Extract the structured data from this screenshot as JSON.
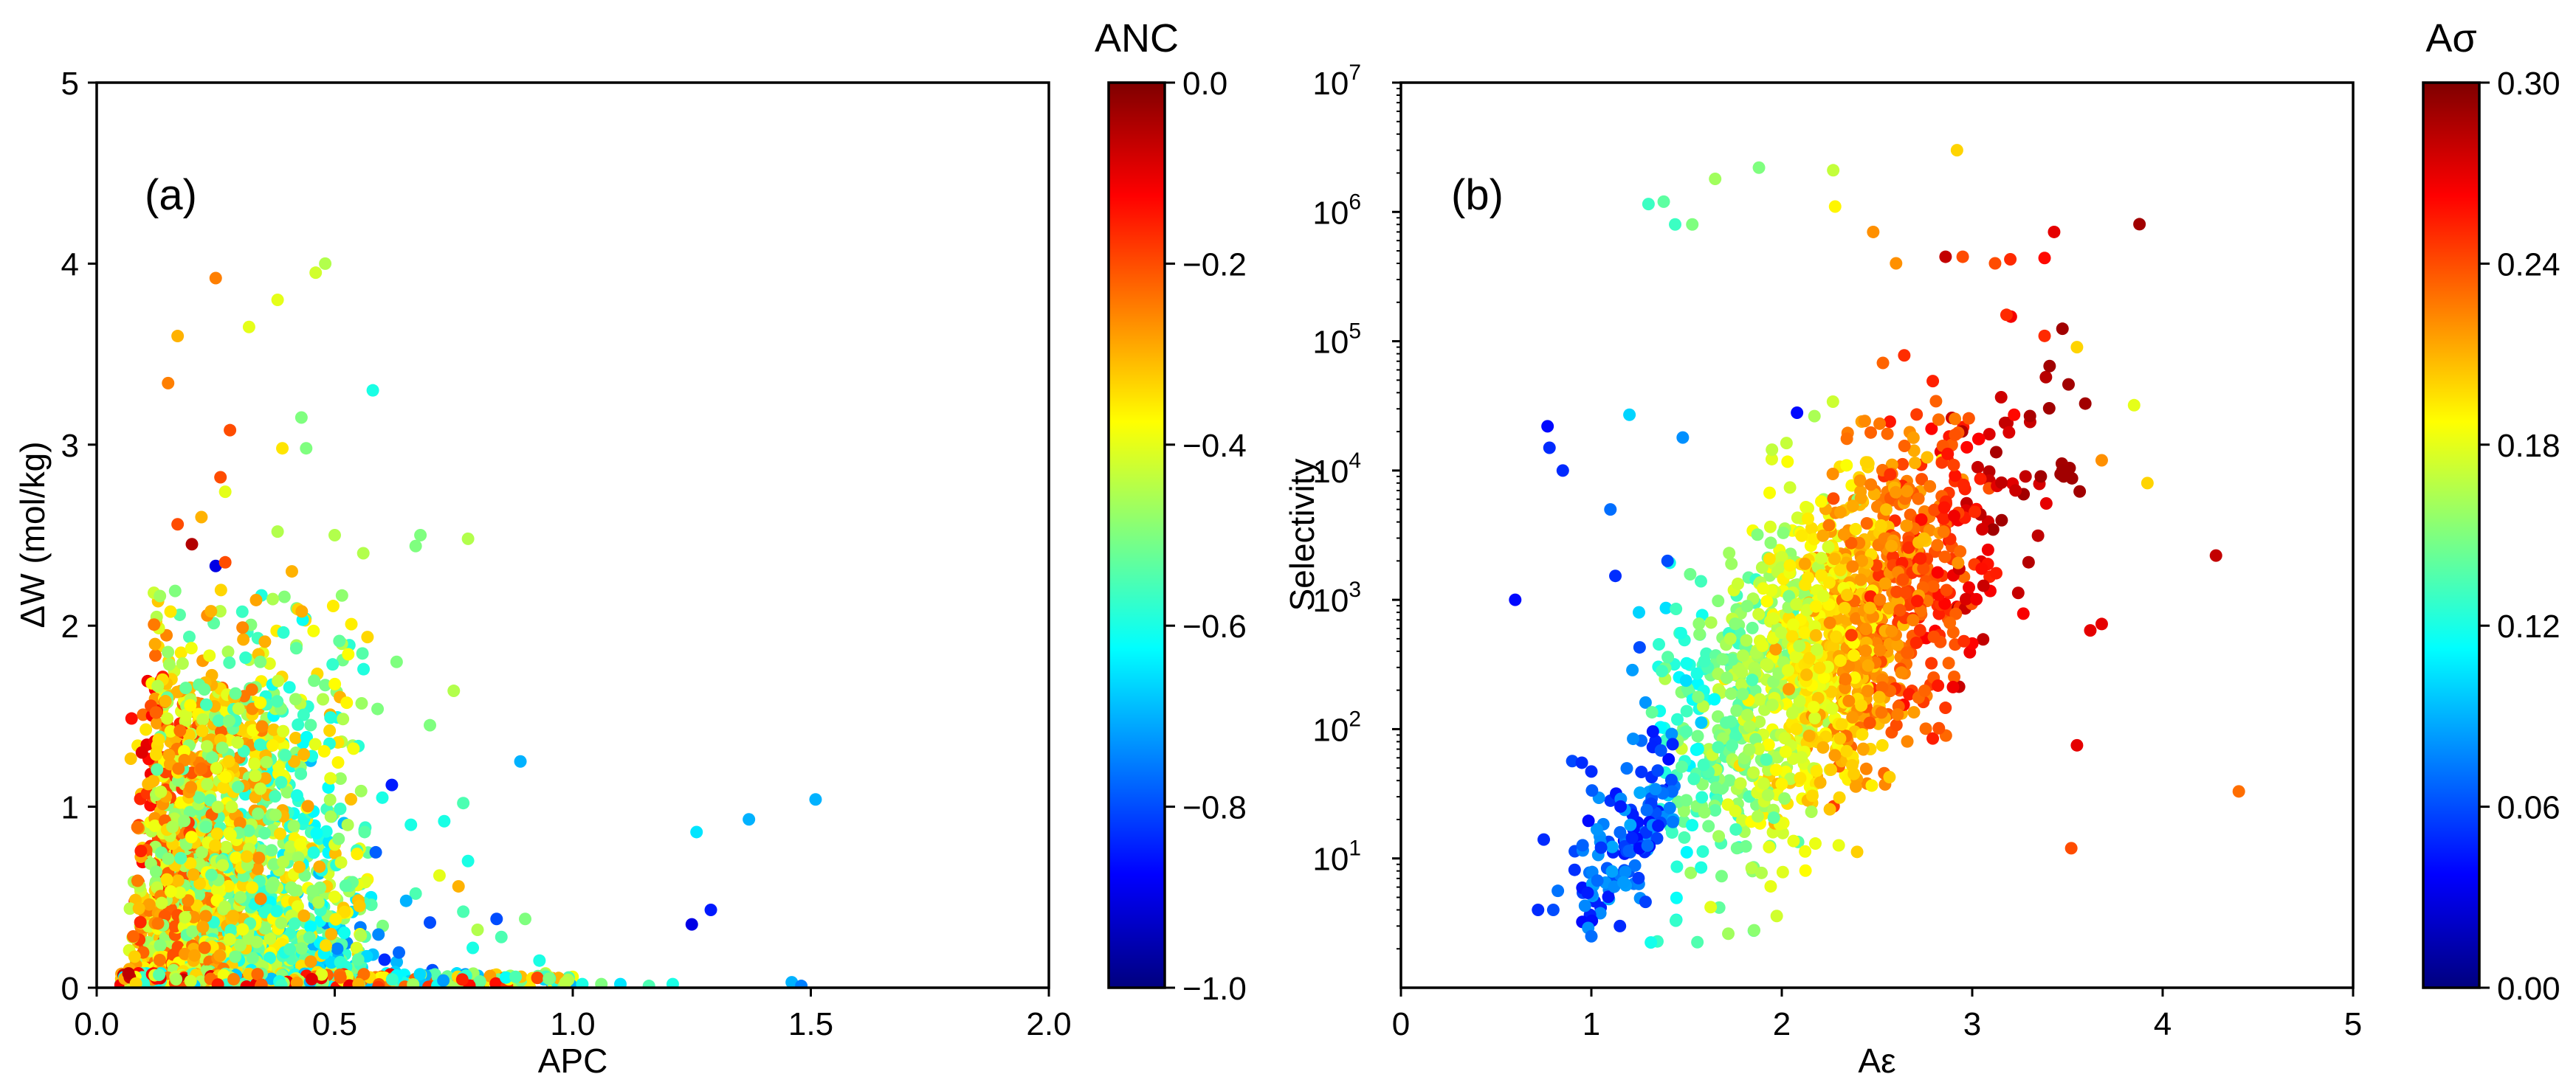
{
  "chart_data": [
    {
      "type": "scatter",
      "panel_label": "(a)",
      "xlabel": "APC",
      "ylabel": "ΔW (mol/kg)",
      "xlim": [
        0.0,
        2.0
      ],
      "ylim": [
        0,
        5
      ],
      "xscale": "linear",
      "yscale": "linear",
      "x_ticks": [
        "0.0",
        "0.5",
        "1.0",
        "1.5",
        "2.0"
      ],
      "y_ticks": [
        "0",
        "1",
        "2",
        "3",
        "4",
        "5"
      ],
      "colorbar": {
        "title": "ANC",
        "range": [
          -1.0,
          0.0
        ],
        "ticks": [
          "0.0",
          "−0.2",
          "−0.4",
          "−0.6",
          "−0.8",
          "−1.0"
        ]
      },
      "colormap": [
        "#00007f",
        "#0000ff",
        "#007fff",
        "#00ffff",
        "#7fff7f",
        "#ffff00",
        "#ff7f00",
        "#ff0000",
        "#7f0000"
      ],
      "points": [
        [
          0.25,
          3.92,
          -0.25
        ],
        [
          0.17,
          3.6,
          -0.3
        ],
        [
          0.15,
          3.34,
          -0.25
        ],
        [
          0.48,
          4.0,
          -0.45
        ],
        [
          0.46,
          3.95,
          -0.42
        ],
        [
          0.38,
          3.8,
          -0.4
        ],
        [
          0.32,
          3.65,
          -0.4
        ],
        [
          0.58,
          3.3,
          -0.6
        ],
        [
          0.43,
          3.15,
          -0.5
        ],
        [
          0.28,
          3.08,
          -0.2
        ],
        [
          0.39,
          2.98,
          -0.35
        ],
        [
          0.44,
          2.98,
          -0.5
        ],
        [
          0.26,
          2.82,
          -0.2
        ],
        [
          0.27,
          2.74,
          -0.4
        ],
        [
          0.17,
          2.56,
          -0.2
        ],
        [
          0.22,
          2.6,
          -0.3
        ],
        [
          0.38,
          2.52,
          -0.45
        ],
        [
          0.5,
          2.5,
          -0.45
        ],
        [
          0.56,
          2.4,
          -0.45
        ],
        [
          0.68,
          2.5,
          -0.5
        ],
        [
          0.67,
          2.44,
          -0.5
        ],
        [
          0.78,
          2.48,
          -0.45
        ],
        [
          0.2,
          2.45,
          -0.05
        ],
        [
          0.25,
          2.33,
          -0.9
        ],
        [
          0.27,
          2.35,
          -0.2
        ],
        [
          0.41,
          2.3,
          -0.3
        ],
        [
          0.24,
          2.08,
          -0.3
        ],
        [
          0.63,
          1.8,
          -0.5
        ],
        [
          0.59,
          1.54,
          -0.5
        ],
        [
          0.75,
          1.64,
          -0.45
        ],
        [
          0.7,
          1.45,
          -0.5
        ],
        [
          0.89,
          1.25,
          -0.7
        ],
        [
          0.62,
          1.12,
          -0.85
        ],
        [
          0.6,
          1.05,
          -0.6
        ],
        [
          0.77,
          1.02,
          -0.55
        ],
        [
          0.73,
          0.92,
          -0.6
        ],
        [
          0.66,
          0.9,
          -0.6
        ],
        [
          0.78,
          0.7,
          -0.6
        ],
        [
          0.67,
          0.52,
          -0.55
        ],
        [
          0.65,
          0.48,
          -0.7
        ],
        [
          0.7,
          0.36,
          -0.8
        ],
        [
          0.77,
          0.42,
          -0.55
        ],
        [
          0.72,
          0.62,
          -0.4
        ],
        [
          0.76,
          0.56,
          -0.3
        ],
        [
          0.8,
          0.32,
          -0.45
        ],
        [
          0.79,
          0.22,
          -0.6
        ],
        [
          0.84,
          0.38,
          -0.8
        ],
        [
          0.85,
          0.28,
          -0.55
        ],
        [
          0.9,
          0.38,
          -0.5
        ],
        [
          0.93,
          0.15,
          -0.6
        ],
        [
          0.88,
          0.06,
          -0.55
        ],
        [
          0.95,
          0.05,
          -0.5
        ],
        [
          1.02,
          0.02,
          -0.6
        ],
        [
          1.06,
          0.02,
          -0.5
        ],
        [
          1.1,
          0.02,
          -0.65
        ],
        [
          1.51,
          1.04,
          -0.7
        ],
        [
          1.37,
          0.93,
          -0.7
        ],
        [
          1.26,
          0.86,
          -0.65
        ],
        [
          1.29,
          0.43,
          -0.85
        ],
        [
          1.25,
          0.35,
          -0.9
        ],
        [
          1.46,
          0.03,
          -0.7
        ],
        [
          1.48,
          0.01,
          -0.75
        ],
        [
          1.21,
          0.02,
          -0.6
        ],
        [
          1.16,
          0.01,
          -0.55
        ],
        [
          0.55,
          0.02,
          -0.3
        ]
      ]
    },
    {
      "type": "scatter",
      "panel_label": "(b)",
      "xlabel": "Aε",
      "ylabel": "Selectivity",
      "xlim": [
        0,
        5
      ],
      "ylim": [
        1,
        10000000
      ],
      "xscale": "linear",
      "yscale": "log",
      "x_ticks": [
        "0",
        "1",
        "2",
        "3",
        "4",
        "5"
      ],
      "y_ticks": [
        {
          "base": "10",
          "exp": "1"
        },
        {
          "base": "10",
          "exp": "2"
        },
        {
          "base": "10",
          "exp": "3"
        },
        {
          "base": "10",
          "exp": "4"
        },
        {
          "base": "10",
          "exp": "5"
        },
        {
          "base": "10",
          "exp": "6"
        },
        {
          "base": "10",
          "exp": "7"
        }
      ],
      "colorbar": {
        "title": "Aσ",
        "range": [
          0.0,
          0.3
        ],
        "ticks": [
          "0.30",
          "0.24",
          "0.18",
          "0.12",
          "0.06",
          "0.00"
        ]
      },
      "colormap": [
        "#00007f",
        "#0000ff",
        "#007fff",
        "#00ffff",
        "#7fff7f",
        "#ffff00",
        "#ff7f00",
        "#ff0000",
        "#7f0000"
      ],
      "points": [
        [
          0.6,
          1000,
          0.04
        ],
        [
          0.77,
          22000,
          0.04
        ],
        [
          0.78,
          15000,
          0.05
        ],
        [
          0.85,
          10000,
          0.05
        ],
        [
          0.95,
          55,
          0.05
        ],
        [
          1.0,
          47,
          0.05
        ],
        [
          0.75,
          14,
          0.05
        ],
        [
          0.72,
          4,
          0.05
        ],
        [
          0.8,
          4,
          0.06
        ],
        [
          1.0,
          2.5,
          0.07
        ],
        [
          1.3,
          1150000,
          0.13
        ],
        [
          1.38,
          1200000,
          0.14
        ],
        [
          1.44,
          800000,
          0.13
        ],
        [
          1.53,
          800000,
          0.15
        ],
        [
          1.65,
          1800000,
          0.16
        ],
        [
          1.88,
          2200000,
          0.15
        ],
        [
          2.27,
          2100000,
          0.17
        ],
        [
          2.28,
          1100000,
          0.19
        ],
        [
          2.92,
          3000000,
          0.2
        ],
        [
          2.48,
          700000,
          0.22
        ],
        [
          2.6,
          400000,
          0.22
        ],
        [
          2.95,
          450000,
          0.24
        ],
        [
          3.12,
          400000,
          0.24
        ],
        [
          3.2,
          430000,
          0.25
        ],
        [
          3.43,
          700000,
          0.27
        ],
        [
          3.38,
          440000,
          0.26
        ],
        [
          2.86,
          450000,
          0.28
        ],
        [
          3.18,
          160000,
          0.25
        ],
        [
          3.38,
          110000,
          0.25
        ],
        [
          3.55,
          90000,
          0.2
        ],
        [
          3.85,
          32000,
          0.18
        ],
        [
          3.92,
          8000,
          0.2
        ],
        [
          3.68,
          12000,
          0.22
        ],
        [
          3.28,
          9000,
          0.28
        ],
        [
          3.36,
          9000,
          0.29
        ],
        [
          3.48,
          9000,
          0.29
        ],
        [
          3.22,
          27000,
          0.26
        ],
        [
          4.28,
          2200,
          0.28
        ],
        [
          4.4,
          33,
          0.23
        ],
        [
          3.52,
          12,
          0.24
        ],
        [
          3.62,
          580,
          0.27
        ],
        [
          3.68,
          650,
          0.27
        ],
        [
          3.55,
          75,
          0.27
        ],
        [
          2.08,
          28000,
          0.04
        ],
        [
          1.2,
          27000,
          0.1
        ],
        [
          1.1,
          5000,
          0.07
        ],
        [
          1.4,
          2000,
          0.06
        ],
        [
          1.25,
          800,
          0.1
        ],
        [
          1.48,
          18000,
          0.08
        ],
        [
          1.15,
          3,
          0.05
        ]
      ]
    }
  ]
}
